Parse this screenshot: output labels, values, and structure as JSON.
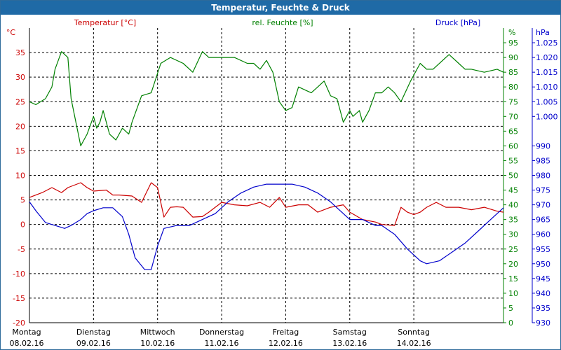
{
  "window": {
    "title": "Temperatur, Feuchte & Druck"
  },
  "colors": {
    "title_bg": "#1f6aa6",
    "temperature": "#cc0000",
    "humidity": "#008000",
    "pressure": "#0000cc",
    "grid": "#000000"
  },
  "chart_data": {
    "type": "line",
    "title": "Temperatur, Feuchte & Druck",
    "grid": true,
    "axes": {
      "temperature": {
        "label": "Temperatur [°C]",
        "unit": "°C",
        "range": [
          -20,
          40
        ],
        "ticks": [
          "35",
          "30",
          "25",
          "20",
          "15",
          "10",
          "5",
          "0",
          "-5",
          "-10",
          "-15",
          "-20"
        ],
        "tick_values": [
          35,
          30,
          25,
          20,
          15,
          10,
          5,
          0,
          -5,
          -10,
          -15,
          -20
        ]
      },
      "humidity": {
        "label": "rel. Feuchte [%]",
        "unit": "%",
        "range": [
          0,
          100
        ],
        "ticks": [
          "95",
          "90",
          "85",
          "80",
          "75",
          "70",
          "65",
          "60",
          "55",
          "50",
          "45",
          "40",
          "35",
          "30",
          "25",
          "20",
          "15",
          "10",
          "5",
          "0"
        ],
        "tick_values": [
          95,
          90,
          85,
          80,
          75,
          70,
          65,
          60,
          55,
          50,
          45,
          40,
          35,
          30,
          25,
          20,
          15,
          10,
          5,
          0
        ]
      },
      "pressure": {
        "label": "Druck [hPa]",
        "unit": "hPa",
        "range": [
          930,
          1030
        ],
        "ticks": [
          "1.025",
          "1.020",
          "1.015",
          "1.010",
          "1.005",
          "1.000",
          "990",
          "985",
          "980",
          "975",
          "970",
          "965",
          "960",
          "955",
          "950",
          "945",
          "940",
          "935",
          "930"
        ],
        "tick_values": [
          1025,
          1020,
          1015,
          1010,
          1005,
          1000,
          990,
          985,
          980,
          975,
          970,
          965,
          960,
          955,
          950,
          945,
          940,
          935,
          930
        ]
      }
    },
    "x_range_days": [
      0,
      7.4
    ],
    "x_ticks": [
      {
        "day": "Montag",
        "date": "08.02.16"
      },
      {
        "day": "Dienstag",
        "date": "09.02.16"
      },
      {
        "day": "Mittwoch",
        "date": "10.02.16"
      },
      {
        "day": "Donnerstag",
        "date": "11.02.16"
      },
      {
        "day": "Freitag",
        "date": "12.02.16"
      },
      {
        "day": "Samstag",
        "date": "13.02.16"
      },
      {
        "day": "Sonntag",
        "date": "14.02.16"
      }
    ],
    "series": [
      {
        "name": "Temperatur [°C]",
        "axis": "temperature",
        "color": "#cc0000",
        "x": [
          0,
          0.2,
          0.35,
          0.5,
          0.6,
          0.8,
          0.9,
          1.0,
          1.2,
          1.3,
          1.4,
          1.6,
          1.75,
          1.9,
          2.0,
          2.1,
          2.2,
          2.3,
          2.4,
          2.55,
          2.7,
          2.8,
          3.0,
          3.2,
          3.4,
          3.6,
          3.75,
          3.9,
          4.0,
          4.2,
          4.35,
          4.5,
          4.7,
          4.9,
          5.0,
          5.2,
          5.4,
          5.5,
          5.7,
          5.8,
          5.9,
          6.0,
          6.1,
          6.2,
          6.35,
          6.5,
          6.7,
          6.9,
          7.1,
          7.3,
          7.4
        ],
        "y": [
          5.5,
          6.5,
          7.5,
          6.5,
          7.5,
          8.5,
          7.5,
          6.8,
          7.0,
          6.0,
          6.0,
          5.8,
          4.5,
          8.5,
          7.5,
          1.5,
          3.5,
          3.6,
          3.5,
          1.5,
          1.6,
          2.5,
          4.5,
          4.0,
          3.8,
          4.5,
          3.5,
          5.5,
          3.5,
          4.0,
          4.0,
          2.5,
          3.5,
          4.0,
          2.5,
          1.0,
          0.5,
          0,
          -0.2,
          3.5,
          2.5,
          2.0,
          2.5,
          3.5,
          4.5,
          3.5,
          3.5,
          3.0,
          3.5,
          2.7,
          2.5
        ]
      },
      {
        "name": "rel. Feuchte [%]",
        "axis": "humidity",
        "color": "#008000",
        "x": [
          0,
          0.1,
          0.25,
          0.35,
          0.4,
          0.5,
          0.6,
          0.65,
          0.8,
          0.9,
          1.0,
          1.05,
          1.1,
          1.15,
          1.2,
          1.25,
          1.35,
          1.45,
          1.55,
          1.6,
          1.75,
          1.9,
          2.05,
          2.2,
          2.4,
          2.55,
          2.7,
          2.8,
          3.0,
          3.2,
          3.4,
          3.5,
          3.6,
          3.7,
          3.8,
          3.9,
          4.0,
          4.1,
          4.2,
          4.3,
          4.4,
          4.5,
          4.6,
          4.7,
          4.8,
          4.85,
          4.9,
          5.0,
          5.05,
          5.15,
          5.2,
          5.3,
          5.4,
          5.5,
          5.6,
          5.7,
          5.8,
          5.95,
          6.1,
          6.2,
          6.3,
          6.5,
          6.55,
          6.6,
          6.7,
          6.8,
          6.9,
          7.1,
          7.3,
          7.4
        ],
        "y": [
          75,
          74,
          76,
          80,
          86,
          92,
          90,
          76,
          60,
          64,
          70,
          66,
          68,
          72,
          68,
          64,
          62,
          66,
          64,
          68,
          77,
          78,
          88,
          90,
          88,
          85,
          92,
          90,
          90,
          90,
          88,
          88,
          86,
          89,
          85,
          75,
          72,
          73,
          80,
          79,
          78,
          80,
          82,
          77,
          76,
          72,
          68,
          72,
          70,
          72,
          68,
          72,
          78,
          78,
          80,
          78,
          75,
          82,
          88,
          86,
          86,
          90,
          91,
          90,
          88,
          86,
          86,
          85,
          86,
          85
        ]
      },
      {
        "name": "Druck [hPa]",
        "axis": "pressure",
        "color": "#0000cc",
        "x": [
          0,
          0.1,
          0.25,
          0.4,
          0.55,
          0.65,
          0.8,
          0.9,
          1.0,
          1.15,
          1.3,
          1.45,
          1.55,
          1.65,
          1.8,
          1.9,
          2.0,
          2.1,
          2.3,
          2.5,
          2.7,
          2.9,
          3.1,
          3.3,
          3.5,
          3.7,
          3.9,
          4.1,
          4.3,
          4.5,
          4.7,
          4.8,
          5.0,
          5.2,
          5.4,
          5.5,
          5.7,
          5.9,
          6.1,
          6.2,
          6.4,
          6.6,
          6.8,
          7.0,
          7.2,
          7.4
        ],
        "y": [
          971,
          968,
          964,
          963,
          962,
          963,
          965,
          967,
          968,
          969,
          969,
          966,
          960,
          952,
          948,
          948,
          956,
          962,
          963,
          963,
          965,
          967,
          971,
          974,
          976,
          977,
          977,
          977,
          976,
          974,
          971,
          969,
          965,
          965,
          963,
          963,
          960,
          955,
          951,
          950,
          951,
          954,
          957,
          961,
          965,
          969
        ]
      }
    ]
  }
}
